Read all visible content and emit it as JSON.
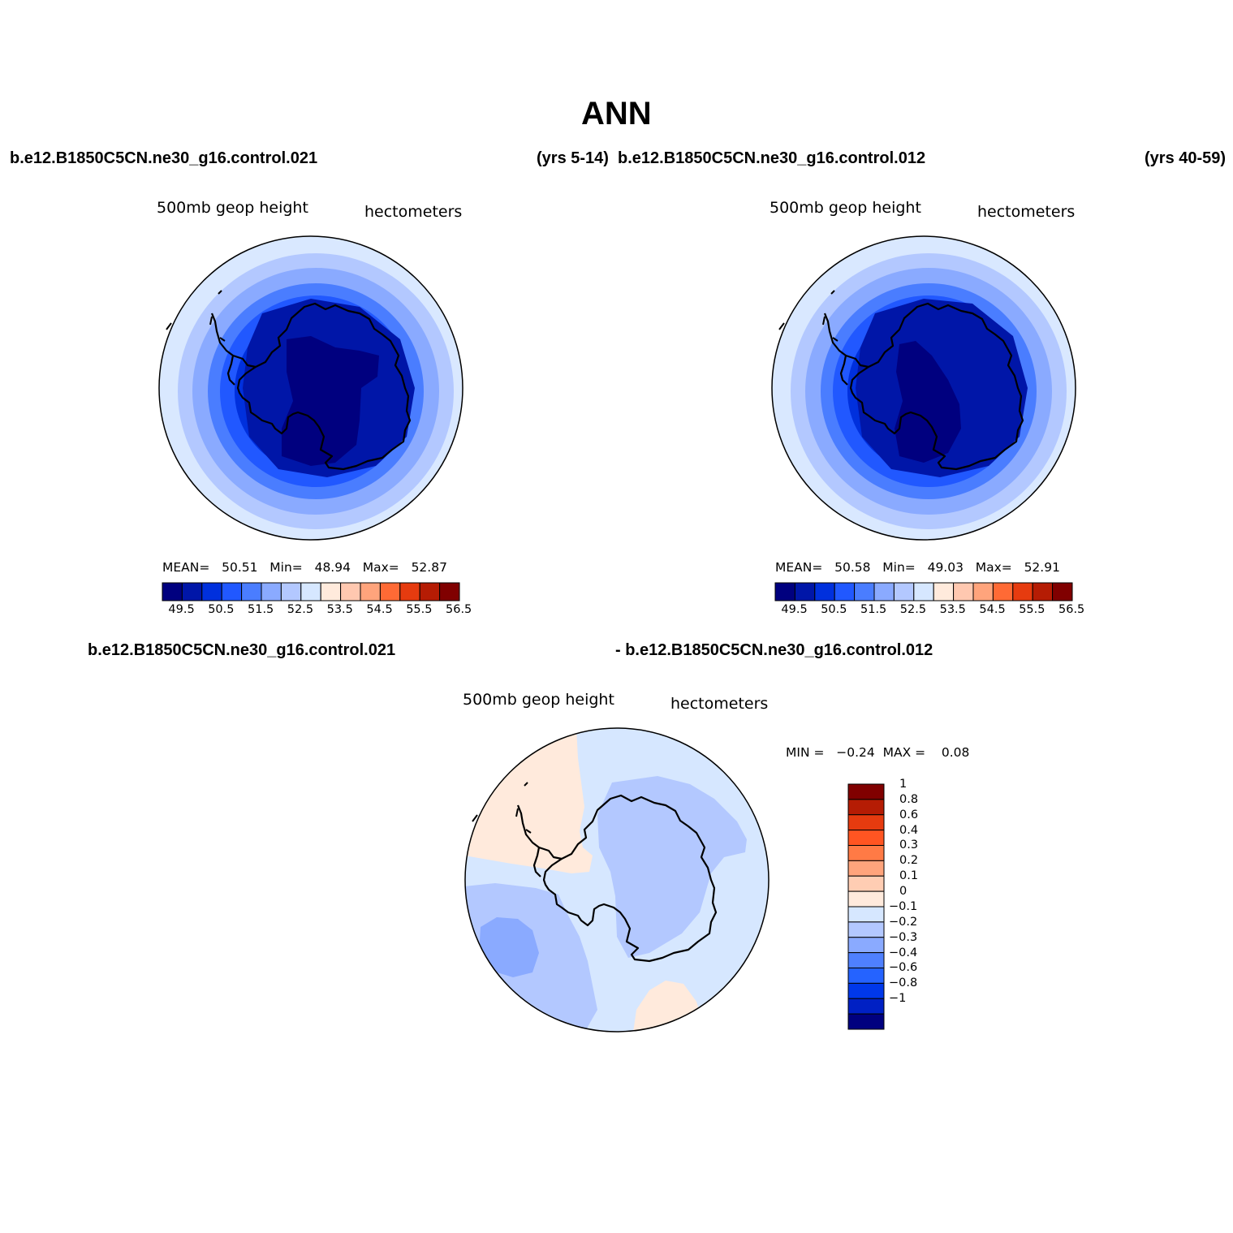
{
  "title": "ANN",
  "header": {
    "case1": "b.e12.B1850C5CN.ne30_g16.control.021",
    "years1": "(yrs 5-14)",
    "case2": "b.e12.B1850C5CN.ne30_g16.control.012",
    "years2": "(yrs 40-59)",
    "diff_case1": "b.e12.B1850C5CN.ne30_g16.control.021",
    "diff_case2": "- b.e12.B1850C5CN.ne30_g16.control.012"
  },
  "panels": [
    {
      "variable": "500mb geop height",
      "units": "hectometers",
      "stats": {
        "mean_label": "MEAN=",
        "mean": "50.51",
        "min_label": "Min=",
        "min": "48.94",
        "max_label": "Max=",
        "max": "52.87"
      }
    },
    {
      "variable": "500mb geop height",
      "units": "hectometers",
      "stats": {
        "mean_label": "MEAN=",
        "mean": "50.58",
        "min_label": "Min=",
        "min": "49.03",
        "max_label": "Max=",
        "max": "52.91"
      }
    },
    {
      "variable": "500mb geop height",
      "units": "hectometers",
      "stats": {
        "min_label": "MIN =",
        "min": "−0.24",
        "max_label": "MAX =",
        "max": "0.08"
      }
    }
  ],
  "colorbar_abs": {
    "colors": [
      "#00007f",
      "#0016a8",
      "#0030dd",
      "#2158ff",
      "#4a7dff",
      "#8aaaff",
      "#b3c8ff",
      "#d6e7ff",
      "#ffeadc",
      "#ffc8b0",
      "#ffa47c",
      "#ff6a35",
      "#e63b0f",
      "#b51c04",
      "#800000"
    ],
    "labels": [
      "49.5",
      "50.5",
      "51.5",
      "52.5",
      "53.5",
      "54.5",
      "55.5",
      "56.5"
    ]
  },
  "colorbar_diff": {
    "colors": [
      "#00007f",
      "#0020c4",
      "#0038ea",
      "#2563ff",
      "#4f80ff",
      "#8aaaff",
      "#b3c8ff",
      "#d6e7ff",
      "#ffeadc",
      "#ffcdb3",
      "#ffa47c",
      "#ff7a45",
      "#ff5522",
      "#e63b0f",
      "#b51c04",
      "#800000"
    ],
    "labels": [
      "−1",
      "−0.8",
      "−0.6",
      "−0.4",
      "−0.3",
      "−0.2",
      "−0.1",
      "0",
      "0.1",
      "0.2",
      "0.3",
      "0.4",
      "0.6",
      "0.8",
      "1"
    ]
  },
  "map_fills": {
    "abs": [
      "#d9e8ff",
      "#b3c8ff",
      "#8aaaff",
      "#4a7dff",
      "#2158ff",
      "#0030dd",
      "#0016a8",
      "#00007f"
    ],
    "diff_base": "#d6e7ff",
    "diff_neg1": "#b3c8ff",
    "diff_neg2": "#8aaaff",
    "diff_pos": "#ffeadc"
  }
}
